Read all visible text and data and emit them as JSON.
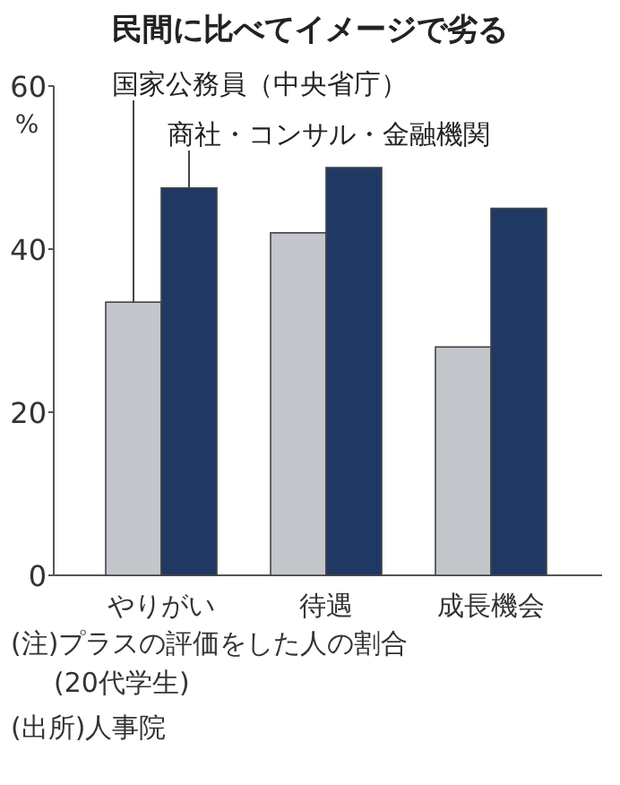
{
  "chart_data": {
    "type": "bar",
    "title": "民間に比べてイメージで劣る",
    "ylabel": "%",
    "categories": [
      "やりがい",
      "待遇",
      "成長機会"
    ],
    "series": [
      {
        "name": "国家公務員（中央省庁）",
        "color": "#c3c6cb",
        "values": [
          33.5,
          42,
          28
        ]
      },
      {
        "name": "商社・コンサル・金融機関",
        "color": "#1f3864",
        "values": [
          47.5,
          50,
          45
        ]
      }
    ],
    "ylim": [
      0,
      60
    ],
    "yticks": [
      0,
      20,
      40,
      60
    ],
    "annotations": [
      "(注)プラスの評価をした人の割合",
      "(20代学生)",
      "(出所)人事院"
    ]
  }
}
